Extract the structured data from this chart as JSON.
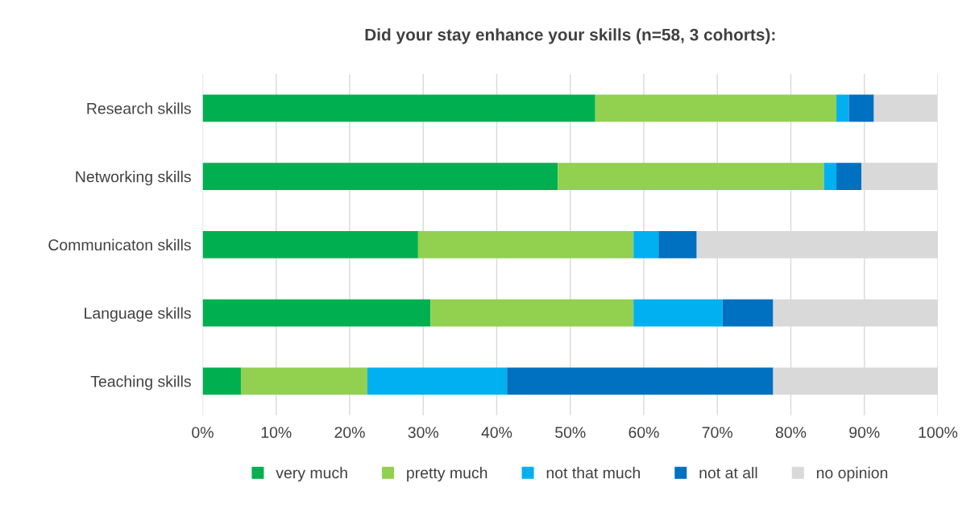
{
  "chart_data": {
    "type": "bar",
    "orientation": "horizontal",
    "stacked": true,
    "title": "Did your stay enhance your skills (n=58, 3 cohorts):",
    "categories": [
      "Research skills",
      "Networking skills",
      "Communicaton skills",
      "Language skills",
      "Teaching skills"
    ],
    "series": [
      {
        "name": "very much",
        "color": "#00b050",
        "values": [
          53.4,
          48.3,
          29.3,
          31.0,
          5.2
        ]
      },
      {
        "name": "pretty much",
        "color": "#92d050",
        "values": [
          32.8,
          36.2,
          29.3,
          27.6,
          17.2
        ]
      },
      {
        "name": "not that much",
        "color": "#00b0f0",
        "values": [
          1.7,
          1.7,
          3.4,
          12.1,
          19.0
        ]
      },
      {
        "name": "not at all",
        "color": "#0070c0",
        "values": [
          3.4,
          3.4,
          5.2,
          6.9,
          36.2
        ]
      },
      {
        "name": "no opinion",
        "color": "#d9d9d9",
        "values": [
          8.6,
          10.3,
          32.8,
          22.4,
          22.4
        ]
      }
    ],
    "xlim": [
      0,
      100
    ],
    "xticks": [
      {
        "value": 0,
        "label": "0%"
      },
      {
        "value": 10,
        "label": "10%"
      },
      {
        "value": 20,
        "label": "20%"
      },
      {
        "value": 30,
        "label": "30%"
      },
      {
        "value": 40,
        "label": "40%"
      },
      {
        "value": 50,
        "label": "50%"
      },
      {
        "value": 60,
        "label": "60%"
      },
      {
        "value": 70,
        "label": "70%"
      },
      {
        "value": 80,
        "label": "80%"
      },
      {
        "value": 90,
        "label": "90%"
      },
      {
        "value": 100,
        "label": "100%"
      }
    ],
    "grid": "x",
    "legend": "bottom"
  }
}
